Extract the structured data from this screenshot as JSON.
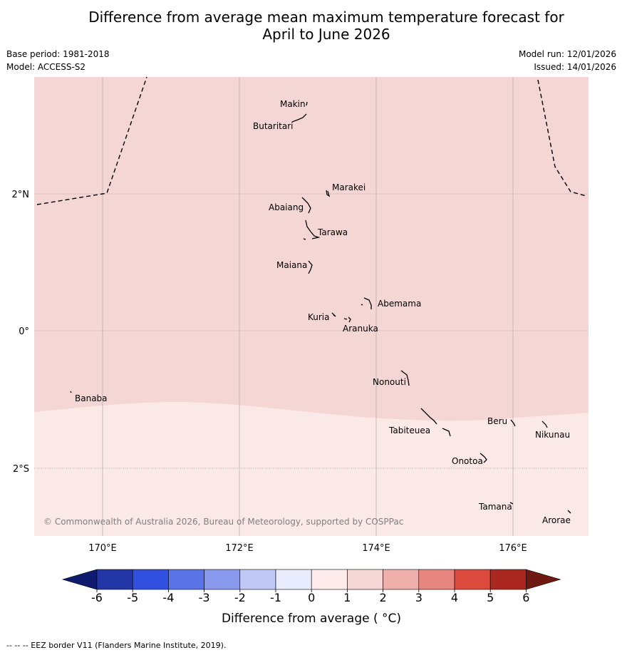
{
  "title": {
    "line1": "Difference from average mean maximum temperature forecast for",
    "line2": "April to June 2026"
  },
  "meta": {
    "base_period": "Base period: 1981-2018",
    "model": "Model: ACCESS-S2",
    "model_run": "Model run: 12/01/2026",
    "issued": "Issued: 14/01/2026"
  },
  "map": {
    "lat_labels": [
      "2°N",
      "0°",
      "2°S"
    ],
    "lon_labels": [
      "170°E",
      "172°E",
      "174°E",
      "176°E"
    ],
    "places": [
      "Makin",
      "Butaritari",
      "Marakei",
      "Abaiang",
      "Tarawa",
      "Maiana",
      "Abemama",
      "Kuria",
      "Aranuka",
      "Nonouti",
      "Banaba",
      "Tabiteuea",
      "Beru",
      "Nikunau",
      "Onotoa",
      "Tamana",
      "Arorae"
    ],
    "copyright": "© Commonwealth of Australia 2026, Bureau of Meteorology, supported by COSPPac",
    "colors": {
      "anomaly_1_to_2": "#f4d6d4",
      "anomaly_0_to_1": "#fbe9e8"
    }
  },
  "colorbar": {
    "ticks": [
      "-6",
      "-5",
      "-4",
      "-3",
      "-2",
      "-1",
      "0",
      "1",
      "2",
      "3",
      "4",
      "5",
      "6"
    ],
    "colors": [
      "#0e1b6e",
      "#2236a8",
      "#3250e0",
      "#5a73e6",
      "#8899ee",
      "#c0c9f5",
      "#e8ebfb",
      "#fcebea",
      "#f4d6d4",
      "#eeaeaa",
      "#e6867e",
      "#dc4a3e",
      "#aa2820",
      "#6e1a12"
    ],
    "label": "Difference from average ( °C)"
  },
  "footnote": "--  --  -- EEZ border V11 (Flanders Marine Institute, 2019)."
}
